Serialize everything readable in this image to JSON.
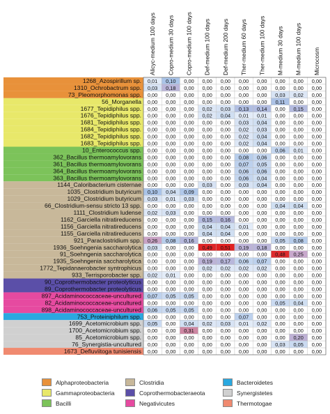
{
  "chart_data": {
    "type": "heatmap",
    "columns": [
      "Alicyc-medium 100 days",
      "Copro-medium 30 days",
      "Copro-medium 100 days",
      "Def-medium 100 days",
      "Def-medium 200 days",
      "Ther-medium 60 days",
      "Ther-medium 100 days",
      "M-medium 30 days",
      "M-medium 100 days",
      "Microcosm"
    ],
    "rows": [
      {
        "label": "1268_Azospirillum sp.",
        "group": "Alphaproteobacteria",
        "values": [
          0.01,
          0.1,
          0.0,
          0.0,
          0.0,
          0.0,
          0.0,
          0.0,
          0.0,
          0.0
        ]
      },
      {
        "label": "1310_Ochrobactrum spp.",
        "group": "Alphaproteobacteria",
        "values": [
          0.03,
          0.18,
          0.0,
          0.0,
          0.0,
          0.0,
          0.0,
          0.0,
          0.0,
          0.0
        ]
      },
      {
        "label": "73_Pleomorphomonas spp.",
        "group": "Alphaproteobacteria",
        "values": [
          0.0,
          0.0,
          0.0,
          0.0,
          0.0,
          0.0,
          0.0,
          0.03,
          0.02,
          0.0
        ]
      },
      {
        "label": "56_Morganella",
        "group": "Gammaproteobacteria",
        "values": [
          0.0,
          0.0,
          0.0,
          0.0,
          0.0,
          0.0,
          0.0,
          0.11,
          0.0,
          0.0
        ]
      },
      {
        "label": "1677_Tepidiphilus spp.",
        "group": "Gammaproteobacteria",
        "values": [
          0.0,
          0.0,
          0.0,
          0.02,
          0.03,
          0.13,
          0.14,
          0.0,
          0.15,
          0.0
        ]
      },
      {
        "label": "1676_Tepidiphilus spp.",
        "group": "Gammaproteobacteria",
        "values": [
          0.0,
          0.0,
          0.0,
          0.02,
          0.04,
          0.01,
          0.01,
          0.0,
          0.0,
          0.0
        ]
      },
      {
        "label": "1681_Tepidiphilus spp.",
        "group": "Gammaproteobacteria",
        "values": [
          0.0,
          0.0,
          0.0,
          0.0,
          0.0,
          0.03,
          0.04,
          0.0,
          0.0,
          0.0
        ]
      },
      {
        "label": "1684_Tepidiphilus spp.",
        "group": "Gammaproteobacteria",
        "values": [
          0.0,
          0.0,
          0.0,
          0.0,
          0.0,
          0.02,
          0.03,
          0.0,
          0.0,
          0.0
        ]
      },
      {
        "label": "1682_Tepidiphilus spp.",
        "group": "Gammaproteobacteria",
        "values": [
          0.0,
          0.0,
          0.0,
          0.0,
          0.0,
          0.02,
          0.04,
          0.0,
          0.0,
          0.0
        ]
      },
      {
        "label": "1683_Tepidiphilus spp.",
        "group": "Gammaproteobacteria",
        "values": [
          0.0,
          0.0,
          0.0,
          0.0,
          0.0,
          0.02,
          0.04,
          0.0,
          0.0,
          0.0
        ]
      },
      {
        "label": "10_Enterococcus spp.",
        "group": "Bacilli",
        "values": [
          0.0,
          0.0,
          0.0,
          0.0,
          0.0,
          0.0,
          0.0,
          0.06,
          0.01,
          0.0
        ]
      },
      {
        "label": "362_Bacillus thermoamylovorans",
        "group": "Bacilli",
        "values": [
          0.0,
          0.0,
          0.0,
          0.0,
          0.0,
          0.08,
          0.06,
          0.0,
          0.0,
          0.0
        ]
      },
      {
        "label": "361_Bacillus thermoamylovorans",
        "group": "Bacilli",
        "values": [
          0.0,
          0.0,
          0.0,
          0.0,
          0.0,
          0.07,
          0.05,
          0.0,
          0.0,
          0.0
        ]
      },
      {
        "label": "364_Bacillus thermoamylovorans",
        "group": "Bacilli",
        "values": [
          0.0,
          0.0,
          0.0,
          0.0,
          0.0,
          0.06,
          0.06,
          0.0,
          0.0,
          0.0
        ]
      },
      {
        "label": "363_Bacillus thermoamylovorans",
        "group": "Bacilli",
        "values": [
          0.0,
          0.0,
          0.0,
          0.0,
          0.0,
          0.06,
          0.04,
          0.0,
          0.0,
          0.0
        ]
      },
      {
        "label": "1144_Caloribacterium cisternae",
        "group": "Clostridia",
        "values": [
          0.0,
          0.0,
          0.0,
          0.03,
          0.0,
          0.03,
          0.04,
          0.0,
          0.0,
          0.0
        ]
      },
      {
        "label": "1035_Clostridium butyricum",
        "group": "Clostridia",
        "values": [
          0.1,
          0.04,
          0.09,
          0.0,
          0.0,
          0.0,
          0.0,
          0.0,
          0.0,
          0.0
        ]
      },
      {
        "label": "1029_Clostridium butyricum",
        "group": "Clostridia",
        "values": [
          0.03,
          0.01,
          0.03,
          0.0,
          0.0,
          0.0,
          0.0,
          0.0,
          0.0,
          0.0
        ]
      },
      {
        "label": "66_Clostridium-sensu stricto 13 spp.",
        "group": "Clostridia",
        "values": [
          0.0,
          0.0,
          0.0,
          0.0,
          0.0,
          0.0,
          0.0,
          0.04,
          0.04,
          0.0
        ]
      },
      {
        "label": "1111_Clostridium ludense",
        "group": "Clostridia",
        "values": [
          0.02,
          0.03,
          0.0,
          0.0,
          0.0,
          0.0,
          0.0,
          0.0,
          0.0,
          0.0
        ]
      },
      {
        "label": "1162_Garciella nitratireducens",
        "group": "Clostridia",
        "values": [
          0.0,
          0.0,
          0.0,
          0.15,
          0.16,
          0.0,
          0.0,
          0.0,
          0.0,
          0.0
        ]
      },
      {
        "label": "1156_Garciella nitratireducens",
        "group": "Clostridia",
        "values": [
          0.0,
          0.0,
          0.0,
          0.04,
          0.04,
          0.01,
          0.0,
          0.0,
          0.0,
          0.0
        ]
      },
      {
        "label": "1155_Garciella nitratireducens",
        "group": "Clostridia",
        "values": [
          0.0,
          0.0,
          0.0,
          0.04,
          0.04,
          0.0,
          0.0,
          0.0,
          0.0,
          0.0
        ]
      },
      {
        "label": "921_Paraclostridium spp.",
        "group": "Clostridia",
        "values": [
          0.26,
          0.08,
          0.16,
          0.0,
          0.0,
          0.0,
          0.0,
          0.05,
          0.08,
          0.0
        ]
      },
      {
        "label": "1936_Soehngenia saccharolytica",
        "group": "Clostridia",
        "values": [
          0.03,
          0.0,
          0.0,
          0.49,
          0.51,
          0.19,
          0.18,
          0.0,
          0.0,
          0.0
        ]
      },
      {
        "label": "91_Soehngenia saccharolytica",
        "group": "Clostridia",
        "values": [
          0.0,
          0.0,
          0.0,
          0.0,
          0.0,
          0.0,
          0.0,
          0.48,
          0.25,
          0.0
        ]
      },
      {
        "label": "1935_Soehngenia saccharolytica",
        "group": "Clostridia",
        "values": [
          0.0,
          0.0,
          0.0,
          0.19,
          0.17,
          0.06,
          0.07,
          0.0,
          0.0,
          0.0
        ]
      },
      {
        "label": "1772_Tepidanaerobacter syntrophicus",
        "group": "Clostridia",
        "values": [
          0.0,
          0.0,
          0.0,
          0.02,
          0.02,
          0.02,
          0.02,
          0.0,
          0.0,
          0.0
        ]
      },
      {
        "label": "933_Terrisporobacter spp.",
        "group": "Clostridia",
        "values": [
          0.02,
          0.01,
          0.0,
          0.0,
          0.0,
          0.0,
          0.0,
          0.0,
          0.0,
          0.0
        ]
      },
      {
        "label": "90_Coprothermobacter proteolyticus",
        "group": "Coprothermobacteraeota",
        "values": [
          0.0,
          0.0,
          0.0,
          0.0,
          0.0,
          0.0,
          0.0,
          0.0,
          0.0,
          0.0
        ]
      },
      {
        "label": "89_Coprothermobacter proteolyticus",
        "group": "Coprothermobacteraeota",
        "values": [
          0.0,
          0.0,
          0.0,
          0.0,
          0.0,
          0.0,
          0.0,
          0.0,
          0.0,
          0.0
        ]
      },
      {
        "label": "897_Acidaminococcaceae-uncultured",
        "group": "Negativicutes",
        "values": [
          0.07,
          0.05,
          0.05,
          0.0,
          0.0,
          0.0,
          0.0,
          0.0,
          0.0,
          0.0
        ]
      },
      {
        "label": "82_Acidaminococcaceae-uncultured",
        "group": "Negativicutes",
        "values": [
          0.0,
          0.0,
          0.0,
          0.0,
          0.0,
          0.0,
          0.0,
          0.05,
          0.04,
          0.0
        ]
      },
      {
        "label": "898_Acidaminococcaceae-uncultured",
        "group": "Negativicutes",
        "values": [
          0.06,
          0.05,
          0.05,
          0.0,
          0.0,
          0.0,
          0.0,
          0.0,
          0.0,
          0.0
        ]
      },
      {
        "label": "753_Proteiniphilum spp.",
        "group": "Bacteroidetes",
        "values": [
          0.0,
          0.0,
          0.0,
          0.0,
          0.0,
          0.07,
          0.0,
          0.0,
          0.0,
          0.0
        ]
      },
      {
        "label": "1699_Acetomicrobium spp.",
        "group": "Synergistetes",
        "values": [
          0.05,
          0.0,
          0.04,
          0.02,
          0.03,
          0.01,
          0.02,
          0.0,
          0.0,
          0.0
        ]
      },
      {
        "label": "1700_Acetomicrobium spp.",
        "group": "Synergistetes",
        "values": [
          0.0,
          0.0,
          0.31,
          0.0,
          0.0,
          0.0,
          0.0,
          0.0,
          0.0,
          0.0
        ]
      },
      {
        "label": "85_Acetomicrobium spp.",
        "group": "Synergistetes",
        "values": [
          0.0,
          0.0,
          0.0,
          0.0,
          0.0,
          0.0,
          0.0,
          0.0,
          0.2,
          0.0
        ]
      },
      {
        "label": "76_Synergistia-uncultured",
        "group": "Synergistetes",
        "values": [
          0.0,
          0.0,
          0.0,
          0.0,
          0.0,
          0.0,
          0.0,
          0.03,
          0.05,
          0.0
        ]
      },
      {
        "label": "1673_Defluviitoga tunisiensis",
        "group": "Thermotogae",
        "values": [
          0.0,
          0.0,
          0.0,
          0.0,
          0.0,
          0.0,
          0.0,
          0.0,
          0.0,
          0.0
        ]
      }
    ],
    "groups": [
      {
        "name": "Alphaproteobacteria",
        "color": "#e8913a"
      },
      {
        "name": "Gammaproteobacteria",
        "color": "#e8e86a"
      },
      {
        "name": "Bacilli",
        "color": "#7cc35a"
      },
      {
        "name": "Clostridia",
        "color": "#c8b89a"
      },
      {
        "name": "Coprothermobacteraeota",
        "color": "#5b4fa8"
      },
      {
        "name": "Negativicutes",
        "color": "#e64aa0"
      },
      {
        "name": "Bacteroidetes",
        "color": "#2aa8e0"
      },
      {
        "name": "Synergistetes",
        "color": "#d0d0d0"
      },
      {
        "name": "Thermotogae",
        "color": "#f08a70"
      }
    ],
    "legend": [
      [
        "Alphaproteobacteria",
        "Clostridia",
        "Bacteroidetes"
      ],
      [
        "Gammaproteobacteria",
        "Coprothermobacteraeota",
        "Synergistetes"
      ],
      [
        "Bacilli",
        "Negativicutes",
        "Thermotogae"
      ]
    ],
    "colorscale": {
      "zero": "#ffffff",
      "low": "#aac4e8",
      "mid": "#c8a8cc",
      "high": "#e02020"
    }
  }
}
